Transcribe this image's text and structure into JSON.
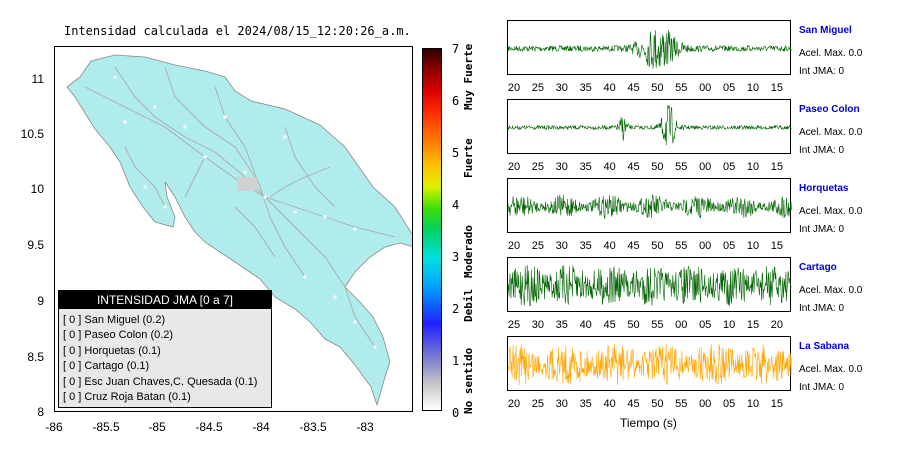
{
  "map": {
    "title": "Intensidad calculada el 2024/08/15_12:20:26_a.m.",
    "y_ticks": [
      "11",
      "10.5",
      "10",
      "9.5",
      "9",
      "8.5",
      "8"
    ],
    "x_ticks": [
      "-86",
      "-85.5",
      "-85",
      "-84.5",
      "-84",
      "-83.5",
      "-83"
    ],
    "land_color": "#b0ecec",
    "roads_color": "#aaaaaa"
  },
  "legend": {
    "title": "INTENSIDAD JMA [0 a 7]",
    "items": [
      "[ 0 ]  San Miguel (0.2)",
      "[ 0 ]  Paseo Colon (0.2)",
      "[ 0 ]  Horquetas (0.1)",
      "[ 0 ]  Cartago (0.1)",
      "[ 0 ]  Esc Juan Chaves,C. Quesada (0.1)",
      "[ 0 ]  Cruz Roja Batan (0.1)"
    ]
  },
  "colorbar": {
    "ticks": [
      "7",
      "6",
      "5",
      "4",
      "3",
      "2",
      "1",
      "0"
    ],
    "labels": [
      "Muy Fuerte",
      "Fuerte",
      "Moderado",
      "Debil",
      "No sentido"
    ]
  },
  "panels": [
    {
      "station": "San Miguel",
      "accel": "Acel. Max. 0.0",
      "int": "Int JMA: 0",
      "color": "#006400",
      "ticks": [
        "20",
        "25",
        "30",
        "35",
        "40",
        "45",
        "50",
        "55",
        "00",
        "05",
        "10",
        "15"
      ]
    },
    {
      "station": "Paseo Colon",
      "accel": "Acel. Max. 0.0",
      "int": "Int JMA: 0",
      "color": "#006400",
      "ticks": [
        "20",
        "25",
        "30",
        "35",
        "40",
        "45",
        "50",
        "55",
        "00",
        "05",
        "10",
        "15"
      ]
    },
    {
      "station": "Horquetas",
      "accel": "Acel. Max. 0.0",
      "int": "Int JMA: 0",
      "color": "#006400",
      "ticks": [
        "20",
        "25",
        "30",
        "35",
        "40",
        "45",
        "50",
        "55",
        "00",
        "05",
        "10",
        "15"
      ]
    },
    {
      "station": "Cartago",
      "accel": "Acel. Max. 0.0",
      "int": "Int JMA: 0",
      "color": "#006400",
      "ticks": [
        "25",
        "30",
        "35",
        "40",
        "45",
        "50",
        "55",
        "00",
        "05",
        "10",
        "15",
        "20"
      ]
    },
    {
      "station": "La Sabana",
      "accel": "Acel. Max. 0.0",
      "int": "Int JMA: 0",
      "color": "#ffa500",
      "ticks": [
        "20",
        "25",
        "30",
        "35",
        "40",
        "45",
        "50",
        "55",
        "00",
        "05",
        "10",
        "15"
      ]
    }
  ],
  "time_axis_label": "Tiempo (s)"
}
